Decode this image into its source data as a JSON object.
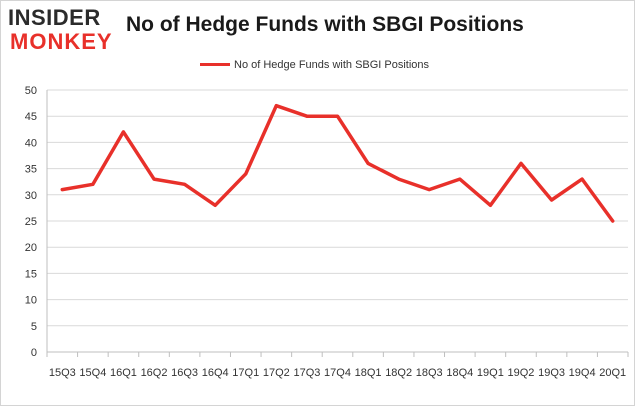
{
  "logo": {
    "line1": "INSIDER",
    "line2": "MONKEY"
  },
  "chart_data": {
    "type": "line",
    "title": "No of Hedge Funds with SBGI Positions",
    "categories": [
      "15Q3",
      "15Q4",
      "16Q1",
      "16Q2",
      "16Q3",
      "16Q4",
      "17Q1",
      "17Q2",
      "17Q3",
      "17Q4",
      "18Q1",
      "18Q2",
      "18Q3",
      "18Q4",
      "19Q1",
      "19Q2",
      "19Q3",
      "19Q4",
      "20Q1"
    ],
    "series": [
      {
        "name": "No of Hedge Funds with SBGI Positions",
        "values": [
          31,
          32,
          42,
          33,
          32,
          28,
          34,
          47,
          45,
          45,
          36,
          33,
          31,
          33,
          28,
          36,
          29,
          33,
          25
        ],
        "color": "#e8302a"
      }
    ],
    "xlabel": "",
    "ylabel": "",
    "ylim": [
      0,
      50
    ],
    "yticks": [
      0,
      5,
      10,
      15,
      20,
      25,
      30,
      35,
      40,
      45,
      50
    ],
    "grid": true,
    "legend": "top-center"
  }
}
